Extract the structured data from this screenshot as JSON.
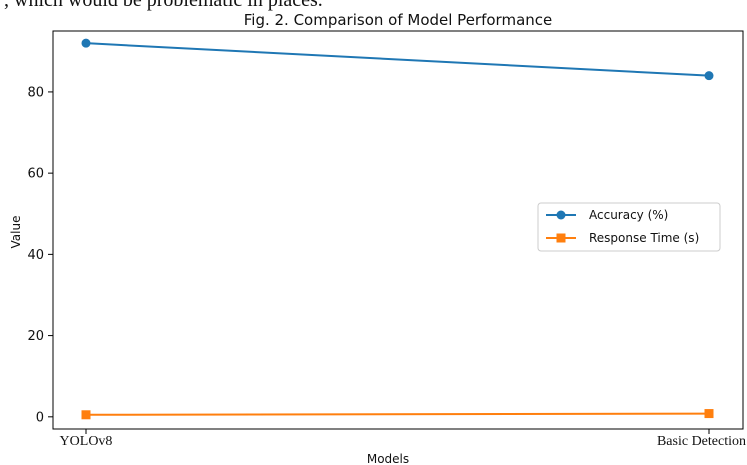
{
  "caption_fragment": "   , which would be problematic in places.",
  "chart_data": {
    "type": "line",
    "title": "Fig. 2. Comparison of Model Performance",
    "xlabel": "Models",
    "ylabel": "Value",
    "categories": [
      "YOLOv8",
      "Basic Detection"
    ],
    "ylim": [
      -3,
      95
    ],
    "yticks": [
      0,
      20,
      40,
      60,
      80
    ],
    "grid": false,
    "legend_position": "center-right",
    "series": [
      {
        "name": "Accuracy (%)",
        "values": [
          92,
          84
        ],
        "color": "#1f77b4",
        "marker": "circle"
      },
      {
        "name": "Response Time (s)",
        "values": [
          0.5,
          0.8
        ],
        "color": "#ff7f0e",
        "marker": "square"
      }
    ]
  }
}
